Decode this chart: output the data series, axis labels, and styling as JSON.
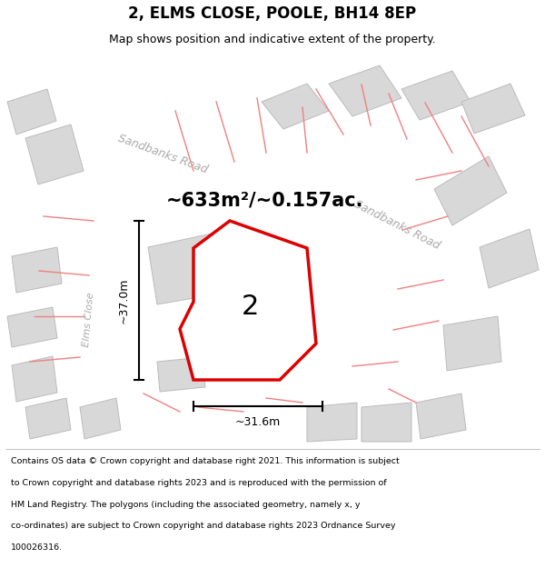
{
  "title": "2, ELMS CLOSE, POOLE, BH14 8EP",
  "subtitle": "Map shows position and indicative extent of the property.",
  "area_label": "~633m²/~0.157ac.",
  "property_number": "2",
  "dim_width": "~31.6m",
  "dim_height": "~37.0m",
  "road_label_top": "Sandbanks Road",
  "road_label_right": "Sandbanks Road",
  "road_label_left": "Elms Close",
  "footer_lines": [
    "Contains OS data © Crown copyright and database right 2021. This information is subject",
    "to Crown copyright and database rights 2023 and is reproduced with the permission of",
    "HM Land Registry. The polygons (including the associated geometry, namely x, y",
    "co-ordinates) are subject to Crown copyright and database rights 2023 Ordnance Survey",
    "100026316."
  ],
  "bg_color": "#f5f5f5",
  "map_bg": "#f0f0f0",
  "road_color": "#ffffff",
  "building_color": "#d8d8d8",
  "building_edge_color": "#bbbbbb",
  "plot_color": "#ffffff",
  "plot_edge_color": "#dd0000",
  "pink_line_color": "#f08080",
  "title_fontsize": 12,
  "subtitle_fontsize": 9,
  "area_fontsize": 16,
  "footer_fontsize": 6.8
}
